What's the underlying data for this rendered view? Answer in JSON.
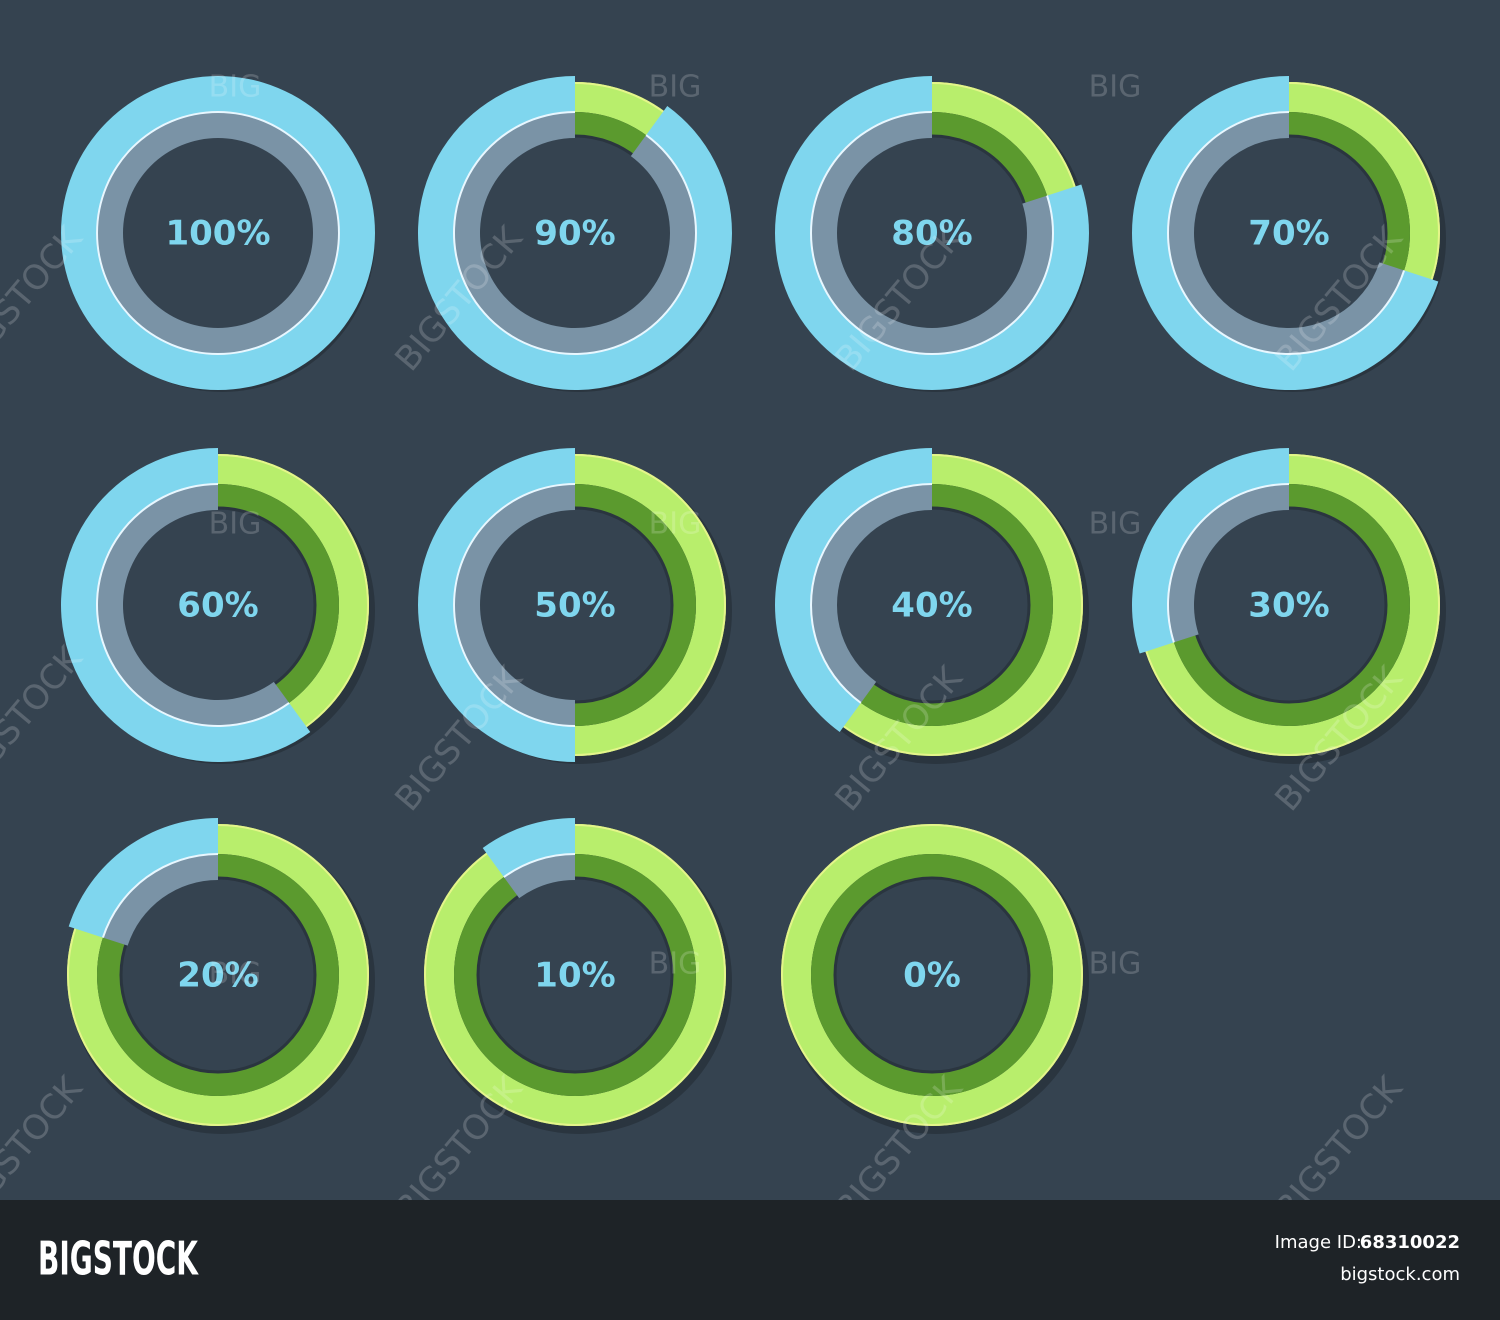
{
  "chart_data": [
    {
      "type": "donut",
      "values": [
        100
      ],
      "value_labels": [
        "100%"
      ],
      "color": "#7fd6ee",
      "track_color": "#b8ee6c"
    },
    {
      "type": "donut",
      "values": [
        90
      ],
      "value_labels": [
        "90%"
      ],
      "color": "#7fd6ee",
      "track_color": "#b8ee6c"
    },
    {
      "type": "donut",
      "values": [
        80
      ],
      "value_labels": [
        "80%"
      ],
      "color": "#7fd6ee",
      "track_color": "#b8ee6c"
    },
    {
      "type": "donut",
      "values": [
        70
      ],
      "value_labels": [
        "70%"
      ],
      "color": "#7fd6ee",
      "track_color": "#b8ee6c"
    },
    {
      "type": "donut",
      "values": [
        60
      ],
      "value_labels": [
        "60%"
      ],
      "color": "#7fd6ee",
      "track_color": "#b8ee6c"
    },
    {
      "type": "donut",
      "values": [
        50
      ],
      "value_labels": [
        "50%"
      ],
      "color": "#7fd6ee",
      "track_color": "#b8ee6c"
    },
    {
      "type": "donut",
      "values": [
        40
      ],
      "value_labels": [
        "40%"
      ],
      "color": "#7fd6ee",
      "track_color": "#b8ee6c"
    },
    {
      "type": "donut",
      "values": [
        30
      ],
      "value_labels": [
        "30%"
      ],
      "color": "#7fd6ee",
      "track_color": "#b8ee6c"
    },
    {
      "type": "donut",
      "values": [
        20
      ],
      "value_labels": [
        "20%"
      ],
      "color": "#7fd6ee",
      "track_color": "#b8ee6c"
    },
    {
      "type": "donut",
      "values": [
        10
      ],
      "value_labels": [
        "10%"
      ],
      "color": "#7fd6ee",
      "track_color": "#b8ee6c"
    },
    {
      "type": "donut",
      "values": [
        0
      ],
      "value_labels": [
        "0%"
      ],
      "color": "#7fd6ee",
      "track_color": "#b8ee6c"
    }
  ],
  "watermark": {
    "small": "BIG",
    "large": "BIGSTOCK"
  },
  "footer": {
    "brand": "BIGSTOCK",
    "id_label": "Image ID:",
    "id": "68310022",
    "site": "bigstock.com"
  }
}
